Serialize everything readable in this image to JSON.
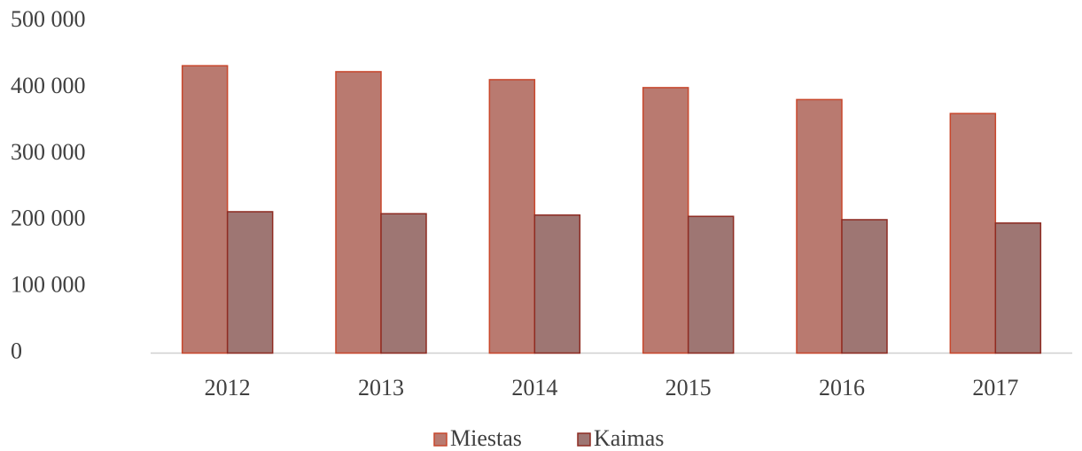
{
  "chart_data": {
    "type": "bar",
    "categories": [
      "2012",
      "2013",
      "2014",
      "2015",
      "2016",
      "2017"
    ],
    "series": [
      {
        "name": "Miestas",
        "color": "#b97a70",
        "stroke": "#c8472c",
        "values": [
          433000,
          424000,
          412000,
          400000,
          382000,
          361000
        ]
      },
      {
        "name": "Kaimas",
        "color": "#9e7673",
        "stroke": "#8e2b22",
        "values": [
          213000,
          210000,
          208000,
          206000,
          201000,
          196000
        ]
      }
    ],
    "ylim": [
      0,
      500000
    ],
    "yticks": [
      0,
      {
        "value": 100000,
        "label": "100 000"
      },
      {
        "value": 200000,
        "label": "200 000"
      },
      {
        "value": 300000,
        "label": "300 000"
      },
      {
        "value": 400000,
        "label": "400 000"
      },
      {
        "value": 500000,
        "label": "500 000"
      }
    ],
    "grid": false,
    "legend": "bottom"
  }
}
